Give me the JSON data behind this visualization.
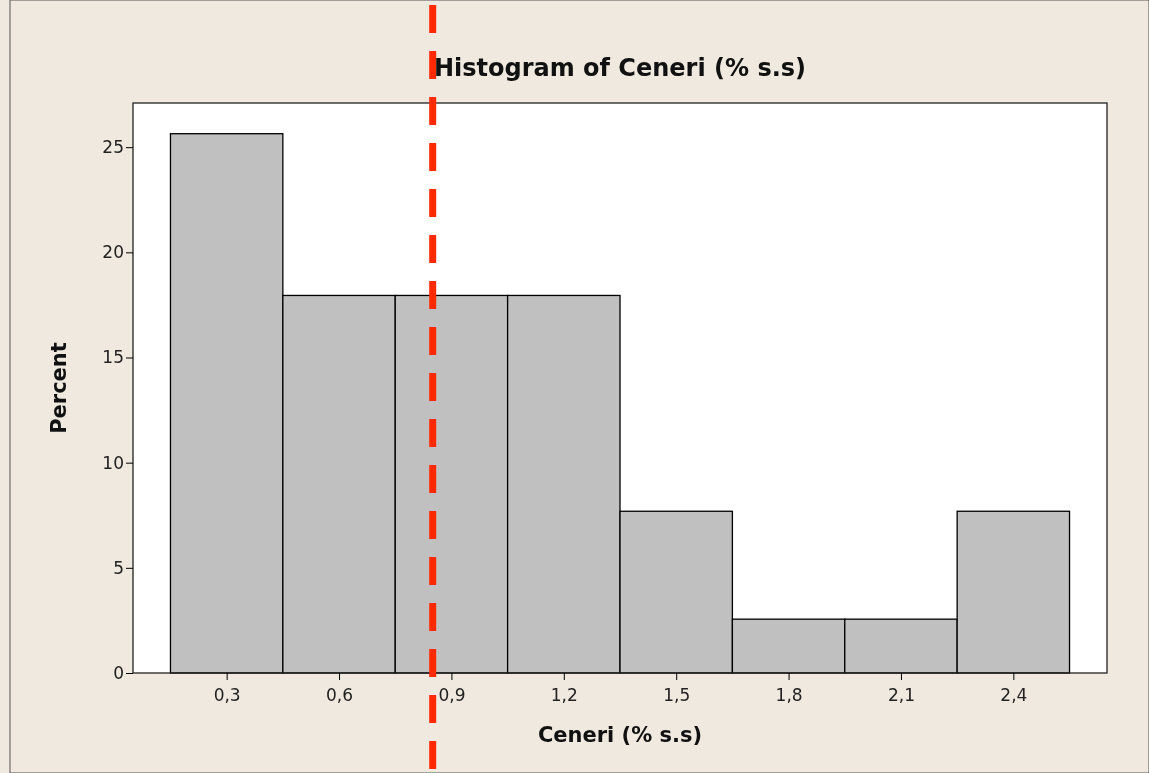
{
  "chart_data": {
    "type": "histogram",
    "title": "Histogram of Ceneri (% s.s)",
    "xlabel": "Ceneri (% s.s)",
    "ylabel": "Percent",
    "bins": [
      0.15,
      0.45,
      0.75,
      1.05,
      1.35,
      1.65,
      1.95,
      2.25,
      2.55
    ],
    "values": [
      25.64,
      17.95,
      17.95,
      17.95,
      7.69,
      2.56,
      2.56,
      7.69
    ],
    "color": "#c0c0c0",
    "xlim": [
      0.05,
      2.65
    ],
    "ylim": [
      0,
      27.1
    ],
    "xticks": [
      {
        "value": 0.3,
        "label": "0,3"
      },
      {
        "value": 0.6,
        "label": "0,6"
      },
      {
        "value": 0.9,
        "label": "0,9"
      },
      {
        "value": 1.2,
        "label": "1,2"
      },
      {
        "value": 1.5,
        "label": "1,5"
      },
      {
        "value": 1.8,
        "label": "1,8"
      },
      {
        "value": 2.1,
        "label": "2,1"
      },
      {
        "value": 2.4,
        "label": "2,4"
      }
    ],
    "yticks": [
      0,
      5,
      10,
      15,
      20,
      25
    ],
    "ref_lines": [
      {
        "axis": "x",
        "value": 0.85,
        "color": "#ff2a00",
        "line_style": "dashed"
      }
    ]
  }
}
